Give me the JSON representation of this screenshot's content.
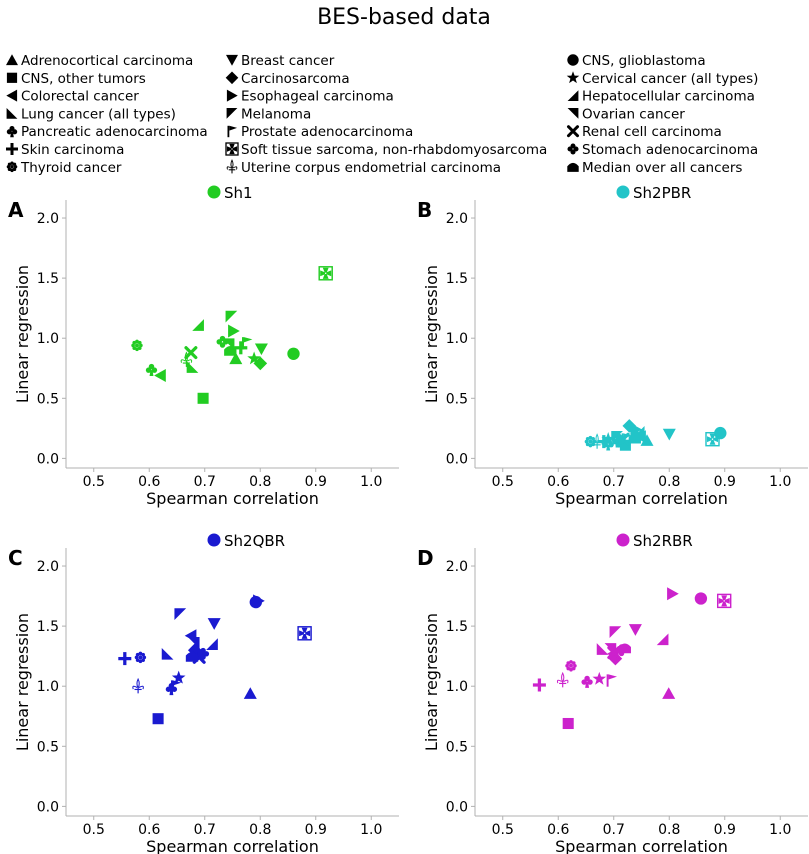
{
  "title": "BES-based data",
  "legend": {
    "entries": [
      {
        "label": "Adrenocortical carcinoma",
        "marker": "triangle-up-icon"
      },
      {
        "label": "Breast cancer",
        "marker": "triangle-down-icon"
      },
      {
        "label": "CNS, glioblastoma",
        "marker": "circle-icon"
      },
      {
        "label": "CNS, other tumors",
        "marker": "square-icon"
      },
      {
        "label": "Carcinosarcoma",
        "marker": "diamond-icon"
      },
      {
        "label": "Cervical cancer (all types)",
        "marker": "star-icon"
      },
      {
        "label": "Colorectal cancer",
        "marker": "triangle-left-icon"
      },
      {
        "label": "Esophageal carcinoma",
        "marker": "triangle-right-icon"
      },
      {
        "label": "Hepatocellular carcinoma",
        "marker": "corner-bottom-right-icon"
      },
      {
        "label": "Lung cancer (all types)",
        "marker": "corner-bottom-left-icon"
      },
      {
        "label": "Melanoma",
        "marker": "corner-top-left-icon"
      },
      {
        "label": "Ovarian cancer",
        "marker": "corner-top-right-icon"
      },
      {
        "label": "Pancreatic adenocarcinoma",
        "marker": "club-icon"
      },
      {
        "label": "Prostate adenocarcinoma",
        "marker": "flag-icon"
      },
      {
        "label": "Renal cell carcinoma",
        "marker": "x-cross-icon"
      },
      {
        "label": "Skin carcinoma",
        "marker": "plus-icon"
      },
      {
        "label": "Soft tissue sarcoma, non-rhabdomyosarcoma",
        "marker": "maltese-cross-icon"
      },
      {
        "label": "Stomach adenocarcinoma",
        "marker": "four-circles-icon"
      },
      {
        "label": "Thyroid cancer",
        "marker": "asterisk-flower-icon"
      },
      {
        "label": "Uterine corpus endometrial carcinoma",
        "marker": "fleur-de-lis-icon"
      },
      {
        "label": "Median over all cancers",
        "marker": "house-icon"
      }
    ]
  },
  "chart_data": [
    {
      "type": "scatter",
      "panel_letter": "A",
      "title": "Sh1",
      "color": "#22cc22",
      "xlabel": "Spearman correlation",
      "ylabel": "Linear regression",
      "xlim": [
        0.45,
        1.05
      ],
      "ylim": [
        -0.08,
        2.15
      ],
      "xticks": [
        0.5,
        0.6,
        0.7,
        0.8,
        0.9,
        1.0
      ],
      "yticks": [
        0.0,
        0.5,
        1.0,
        1.5,
        2.0
      ],
      "xtick_labels": [
        "0.5",
        "0.6",
        "0.7",
        "0.8",
        "0.9",
        "1.0"
      ],
      "ytick_labels": [
        "0.0",
        "0.5",
        "1.0",
        "1.5",
        "2.0"
      ],
      "points": [
        {
          "x": 0.756,
          "y": 0.83,
          "m": "triangle-up-icon"
        },
        {
          "x": 0.802,
          "y": 0.91,
          "m": "triangle-down-icon"
        },
        {
          "x": 0.86,
          "y": 0.87,
          "m": "circle-icon"
        },
        {
          "x": 0.697,
          "y": 0.5,
          "m": "square-icon"
        },
        {
          "x": 0.8,
          "y": 0.79,
          "m": "diamond-icon"
        },
        {
          "x": 0.789,
          "y": 0.83,
          "m": "star-icon"
        },
        {
          "x": 0.62,
          "y": 0.69,
          "m": "triangle-left-icon"
        },
        {
          "x": 0.752,
          "y": 1.06,
          "m": "triangle-right-icon"
        },
        {
          "x": 0.688,
          "y": 1.11,
          "m": "corner-bottom-right-icon"
        },
        {
          "x": 0.678,
          "y": 0.76,
          "m": "corner-bottom-left-icon"
        },
        {
          "x": 0.748,
          "y": 1.18,
          "m": "corner-top-left-icon"
        },
        {
          "x": 0.743,
          "y": 0.95,
          "m": "corner-top-right-icon"
        },
        {
          "x": 0.604,
          "y": 0.74,
          "m": "club-icon"
        },
        {
          "x": 0.776,
          "y": 0.96,
          "m": "flag-icon"
        },
        {
          "x": 0.675,
          "y": 0.88,
          "m": "x-cross-icon"
        },
        {
          "x": 0.765,
          "y": 0.92,
          "m": "plus-icon"
        },
        {
          "x": 0.918,
          "y": 1.54,
          "m": "maltese-cross-icon"
        },
        {
          "x": 0.732,
          "y": 0.97,
          "m": "four-circles-icon"
        },
        {
          "x": 0.578,
          "y": 0.94,
          "m": "asterisk-flower-icon"
        },
        {
          "x": 0.667,
          "y": 0.82,
          "m": "fleur-de-lis-icon"
        },
        {
          "x": 0.746,
          "y": 0.9,
          "m": "house-icon"
        }
      ]
    },
    {
      "type": "scatter",
      "panel_letter": "B",
      "title": "Sh2PBR",
      "color": "#22c4c8",
      "xlabel": "Spearman correlation",
      "ylabel": "Linear regression",
      "xlim": [
        0.45,
        1.05
      ],
      "ylim": [
        -0.08,
        2.15
      ],
      "xticks": [
        0.5,
        0.6,
        0.7,
        0.8,
        0.9,
        1.0
      ],
      "yticks": [
        0.0,
        0.5,
        1.0,
        1.5,
        2.0
      ],
      "xtick_labels": [
        "0.5",
        "0.6",
        "0.7",
        "0.8",
        "0.9",
        "1.0"
      ],
      "ytick_labels": [
        "0.0",
        "0.5",
        "1.0",
        "1.5",
        "2.0"
      ],
      "points": [
        {
          "x": 0.76,
          "y": 0.15,
          "m": "triangle-up-icon"
        },
        {
          "x": 0.8,
          "y": 0.2,
          "m": "triangle-down-icon"
        },
        {
          "x": 0.892,
          "y": 0.21,
          "m": "circle-icon"
        },
        {
          "x": 0.721,
          "y": 0.11,
          "m": "square-icon"
        },
        {
          "x": 0.728,
          "y": 0.27,
          "m": "diamond-icon"
        },
        {
          "x": 0.69,
          "y": 0.16,
          "m": "star-icon"
        },
        {
          "x": 0.748,
          "y": 0.18,
          "m": "triangle-left-icon"
        },
        {
          "x": 0.74,
          "y": 0.24,
          "m": "triangle-right-icon"
        },
        {
          "x": 0.745,
          "y": 0.22,
          "m": "corner-bottom-right-icon"
        },
        {
          "x": 0.714,
          "y": 0.14,
          "m": "corner-bottom-left-icon"
        },
        {
          "x": 0.706,
          "y": 0.18,
          "m": "corner-top-left-icon"
        },
        {
          "x": 0.734,
          "y": 0.2,
          "m": "corner-top-right-icon"
        },
        {
          "x": 0.69,
          "y": 0.12,
          "m": "club-icon"
        },
        {
          "x": 0.723,
          "y": 0.16,
          "m": "flag-icon"
        },
        {
          "x": 0.717,
          "y": 0.16,
          "m": "x-cross-icon"
        },
        {
          "x": 0.682,
          "y": 0.14,
          "m": "plus-icon"
        },
        {
          "x": 0.878,
          "y": 0.16,
          "m": "maltese-cross-icon"
        },
        {
          "x": 0.708,
          "y": 0.14,
          "m": "four-circles-icon"
        },
        {
          "x": 0.658,
          "y": 0.14,
          "m": "asterisk-flower-icon"
        },
        {
          "x": 0.67,
          "y": 0.14,
          "m": "fleur-de-lis-icon"
        },
        {
          "x": 0.738,
          "y": 0.17,
          "m": "house-icon"
        }
      ]
    },
    {
      "type": "scatter",
      "panel_letter": "C",
      "title": "Sh2QBR",
      "color": "#1a1ad0",
      "xlabel": "Spearman correlation",
      "ylabel": "Linear regression",
      "xlim": [
        0.45,
        1.05
      ],
      "ylim": [
        -0.08,
        2.15
      ],
      "xticks": [
        0.5,
        0.6,
        0.7,
        0.8,
        0.9,
        1.0
      ],
      "yticks": [
        0.0,
        0.5,
        1.0,
        1.5,
        2.0
      ],
      "xtick_labels": [
        "0.5",
        "0.6",
        "0.7",
        "0.8",
        "0.9",
        "1.0"
      ],
      "ytick_labels": [
        "0.0",
        "0.5",
        "1.0",
        "1.5",
        "2.0"
      ],
      "points": [
        {
          "x": 0.782,
          "y": 0.94,
          "m": "triangle-up-icon"
        },
        {
          "x": 0.717,
          "y": 1.52,
          "m": "triangle-down-icon"
        },
        {
          "x": 0.792,
          "y": 1.7,
          "m": "circle-icon"
        },
        {
          "x": 0.616,
          "y": 0.73,
          "m": "square-icon"
        },
        {
          "x": 0.682,
          "y": 1.3,
          "m": "diamond-icon"
        },
        {
          "x": 0.653,
          "y": 1.07,
          "m": "star-icon"
        },
        {
          "x": 0.675,
          "y": 1.42,
          "m": "triangle-left-icon"
        },
        {
          "x": 0.797,
          "y": 1.71,
          "m": "triangle-right-icon"
        },
        {
          "x": 0.713,
          "y": 1.35,
          "m": "corner-bottom-right-icon"
        },
        {
          "x": 0.633,
          "y": 1.27,
          "m": "corner-bottom-left-icon"
        },
        {
          "x": 0.656,
          "y": 1.6,
          "m": "corner-top-left-icon"
        },
        {
          "x": 0.68,
          "y": 1.36,
          "m": "corner-top-right-icon"
        },
        {
          "x": 0.64,
          "y": 0.98,
          "m": "club-icon"
        },
        {
          "x": 0.648,
          "y": 1.0,
          "m": "flag-icon"
        },
        {
          "x": 0.69,
          "y": 1.24,
          "m": "x-cross-icon"
        },
        {
          "x": 0.556,
          "y": 1.23,
          "m": "plus-icon"
        },
        {
          "x": 0.88,
          "y": 1.44,
          "m": "maltese-cross-icon"
        },
        {
          "x": 0.697,
          "y": 1.27,
          "m": "four-circles-icon"
        },
        {
          "x": 0.584,
          "y": 1.24,
          "m": "asterisk-flower-icon"
        },
        {
          "x": 0.58,
          "y": 1.0,
          "m": "fleur-de-lis-icon"
        },
        {
          "x": 0.677,
          "y": 1.25,
          "m": "house-icon"
        }
      ]
    },
    {
      "type": "scatter",
      "panel_letter": "D",
      "title": "Sh2RBR",
      "color": "#cc22cc",
      "xlabel": "Spearman correlation",
      "ylabel": "Linear regression",
      "xlim": [
        0.45,
        1.05
      ],
      "ylim": [
        -0.08,
        2.15
      ],
      "xticks": [
        0.5,
        0.6,
        0.7,
        0.8,
        0.9,
        1.0
      ],
      "yticks": [
        0.0,
        0.5,
        1.0,
        1.5,
        2.0
      ],
      "xtick_labels": [
        "0.5",
        "0.6",
        "0.7",
        "0.8",
        "0.9",
        "1.0"
      ],
      "ytick_labels": [
        "0.0",
        "0.5",
        "1.0",
        "1.5",
        "2.0"
      ],
      "points": [
        {
          "x": 0.799,
          "y": 0.94,
          "m": "triangle-up-icon"
        },
        {
          "x": 0.739,
          "y": 1.47,
          "m": "triangle-down-icon"
        },
        {
          "x": 0.857,
          "y": 1.73,
          "m": "circle-icon"
        },
        {
          "x": 0.618,
          "y": 0.69,
          "m": "square-icon"
        },
        {
          "x": 0.703,
          "y": 1.23,
          "m": "diamond-icon"
        },
        {
          "x": 0.674,
          "y": 1.06,
          "m": "star-icon"
        },
        {
          "x": 0.699,
          "y": 1.27,
          "m": "triangle-left-icon"
        },
        {
          "x": 0.806,
          "y": 1.77,
          "m": "triangle-right-icon"
        },
        {
          "x": 0.788,
          "y": 1.39,
          "m": "corner-bottom-right-icon"
        },
        {
          "x": 0.68,
          "y": 1.31,
          "m": "corner-bottom-left-icon"
        },
        {
          "x": 0.703,
          "y": 1.45,
          "m": "corner-top-left-icon"
        },
        {
          "x": 0.694,
          "y": 1.31,
          "m": "corner-top-right-icon"
        },
        {
          "x": 0.652,
          "y": 1.04,
          "m": "club-icon"
        },
        {
          "x": 0.696,
          "y": 1.05,
          "m": "flag-icon"
        },
        {
          "x": 0.7,
          "y": 1.28,
          "m": "x-cross-icon"
        },
        {
          "x": 0.566,
          "y": 1.01,
          "m": "plus-icon"
        },
        {
          "x": 0.899,
          "y": 1.71,
          "m": "maltese-cross-icon"
        },
        {
          "x": 0.714,
          "y": 1.3,
          "m": "four-circles-icon"
        },
        {
          "x": 0.623,
          "y": 1.17,
          "m": "asterisk-flower-icon"
        },
        {
          "x": 0.608,
          "y": 1.05,
          "m": "fleur-de-lis-icon"
        },
        {
          "x": 0.72,
          "y": 1.32,
          "m": "house-icon"
        }
      ]
    }
  ]
}
